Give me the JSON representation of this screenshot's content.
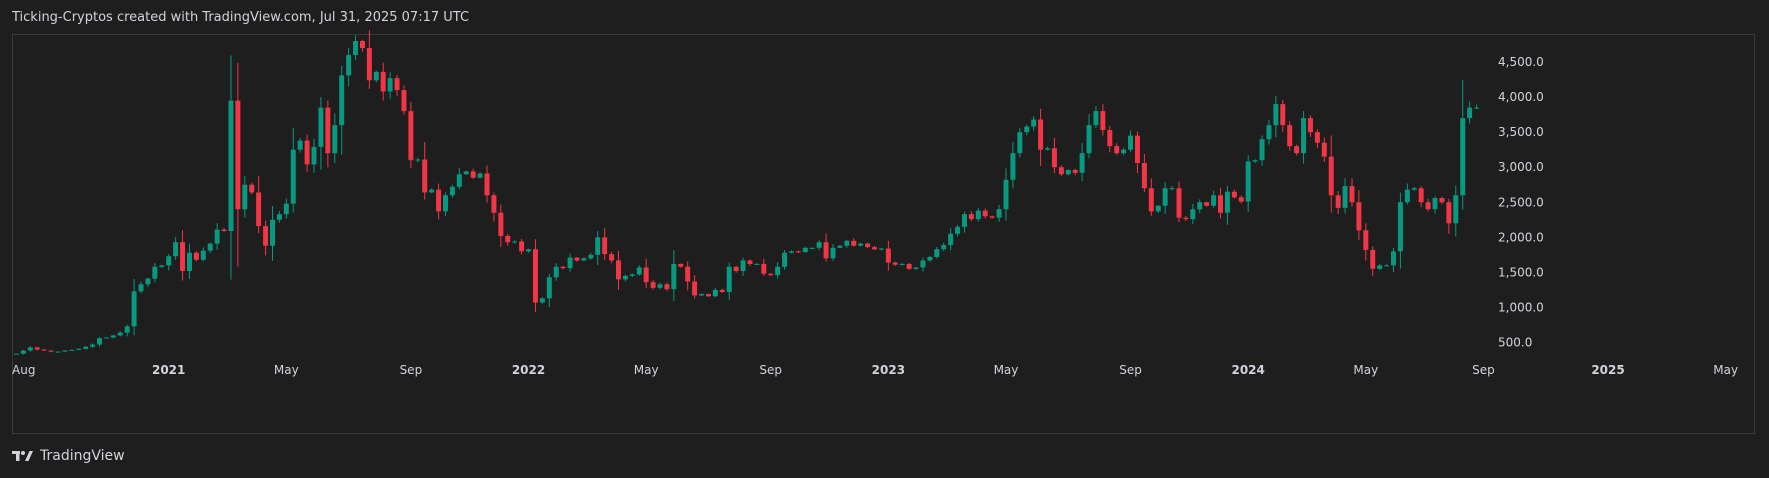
{
  "header": {
    "title": "Ticking-Cryptos created with TradingView.com, Jul 31, 2025 07:17 UTC"
  },
  "footer": {
    "brand": "TradingView",
    "logo_icon": "tradingview-logo-icon"
  },
  "colors": {
    "background": "#1e1e1e",
    "up": "#089981",
    "down": "#f23645",
    "text": "#d1d4dc",
    "border": "#3a3a3a"
  },
  "chart_data": {
    "type": "candlestick",
    "interval": "weekly",
    "ylim": [
      250,
      4900
    ],
    "y_ticks": [
      500,
      1000,
      1500,
      2000,
      2500,
      3000,
      3500,
      4000,
      4500
    ],
    "y_tick_labels": [
      "500.0",
      "1,000.0",
      "1,500.0",
      "2,000.0",
      "2,500.0",
      "3,000.0",
      "3,500.0",
      "4,000.0",
      "4,500.0"
    ],
    "x_ticks": [
      {
        "label": "Aug",
        "year": false
      },
      {
        "label": "2021",
        "year": true
      },
      {
        "label": "May",
        "year": false
      },
      {
        "label": "Sep",
        "year": false
      },
      {
        "label": "2022",
        "year": true
      },
      {
        "label": "May",
        "year": false
      },
      {
        "label": "Sep",
        "year": false
      },
      {
        "label": "2023",
        "year": true
      },
      {
        "label": "May",
        "year": false
      },
      {
        "label": "Sep",
        "year": false
      },
      {
        "label": "2024",
        "year": true
      },
      {
        "label": "May",
        "year": false
      },
      {
        "label": "Sep",
        "year": false
      },
      {
        "label": "2025",
        "year": true
      },
      {
        "label": "May",
        "year": false
      }
    ],
    "x_tick_candle_index": [
      0,
      22,
      39,
      57,
      74,
      91,
      109,
      126,
      143,
      161,
      178,
      195,
      212,
      230,
      247
    ],
    "close_series": [
      340,
      385,
      430,
      400,
      385,
      370,
      370,
      385,
      395,
      410,
      440,
      470,
      560,
      570,
      600,
      640,
      730,
      1230,
      1330,
      1410,
      1580,
      1600,
      1730,
      1930,
      1520,
      1780,
      1680,
      1810,
      1910,
      2110,
      2090,
      3950,
      2400,
      2750,
      2640,
      2160,
      1880,
      2250,
      2330,
      2480,
      3250,
      3380,
      3040,
      3290,
      3850,
      3200,
      3600,
      4310,
      4600,
      4800,
      4700,
      4240,
      4360,
      4080,
      4270,
      4100,
      3800,
      3100,
      3110,
      2640,
      2680,
      2370,
      2600,
      2720,
      2900,
      2940,
      2850,
      2910,
      2600,
      2350,
      2020,
      1930,
      1940,
      1800,
      1830,
      1070,
      1130,
      1430,
      1580,
      1560,
      1710,
      1670,
      1700,
      1750,
      2000,
      1760,
      1670,
      1400,
      1450,
      1470,
      1570,
      1360,
      1280,
      1330,
      1260,
      1620,
      1580,
      1370,
      1170,
      1190,
      1160,
      1250,
      1220,
      1580,
      1520,
      1670,
      1620,
      1620,
      1480,
      1460,
      1580,
      1780,
      1800,
      1790,
      1850,
      1850,
      1930,
      1700,
      1850,
      1880,
      1950,
      1880,
      1910,
      1860,
      1830,
      1840,
      1640,
      1610,
      1620,
      1550,
      1570,
      1670,
      1720,
      1830,
      1890,
      2050,
      2150,
      2330,
      2260,
      2380,
      2300,
      2280,
      2400,
      2820,
      3200,
      3500,
      3580,
      3680,
      3250,
      3270,
      3000,
      2900,
      2960,
      2920,
      3200,
      3600,
      3800,
      3530,
      3300,
      3200,
      3250,
      3450,
      3060,
      2700,
      2370,
      2450,
      2700,
      2700,
      2280,
      2260,
      2400,
      2500,
      2450,
      2600,
      2350,
      2650,
      2570,
      2510,
      3080,
      3100,
      3400,
      3600,
      3900,
      3600,
      3300,
      3200,
      3700,
      3500,
      3350,
      3150,
      2600,
      2420,
      2730,
      2500,
      2100,
      1820,
      1550,
      1600,
      1600,
      1800,
      2500,
      2680,
      2700,
      2500,
      2400,
      2560,
      2500,
      2200,
      2600,
      3700,
      3850,
      3850
    ]
  }
}
